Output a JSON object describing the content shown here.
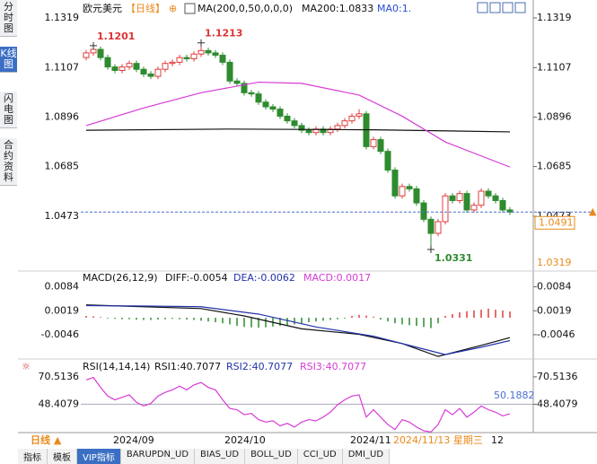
{
  "sidebar": [
    "分时图",
    "K线图",
    "闪电图",
    "合约资料"
  ],
  "chart_data": [
    {
      "type": "candlestick",
      "title": "欧元美元",
      "period": "【日线】",
      "indicator_label": "MA(200,0,50,0,0,0)",
      "indicator_values": [
        "MA200:1.0833",
        "MA0:1."
      ],
      "ylim": [
        1.0247,
        1.1342
      ],
      "yticks": [
        1.1319,
        1.1107,
        1.0896,
        1.0685,
        1.0473
      ],
      "up_color": "#e03c3c",
      "down_color": "#2e8b2e",
      "open": [
        1.115,
        1.117,
        1.1185,
        1.115,
        1.111,
        1.1095,
        1.111,
        1.1125,
        1.11,
        1.108,
        1.107,
        1.11,
        1.1125,
        1.113,
        1.115,
        1.1145,
        1.1165,
        1.118,
        1.117,
        1.116,
        1.113,
        1.105,
        1.104,
        1.1,
        1.0995,
        1.096,
        1.094,
        1.093,
        1.09,
        1.088,
        1.086,
        1.084,
        1.083,
        1.0845,
        1.083,
        1.0845,
        1.086,
        1.088,
        1.09,
        1.091,
        1.077,
        1.08,
        1.075,
        1.067,
        1.056,
        1.06,
        1.059,
        1.053,
        1.046,
        1.04,
        1.045,
        1.056,
        1.054,
        1.057,
        1.05,
        1.052,
        1.058,
        1.056,
        1.054,
        1.05
      ],
      "high": [
        1.1182,
        1.1201,
        1.1197,
        1.1162,
        1.1122,
        1.1122,
        1.1137,
        1.1137,
        1.1112,
        1.1092,
        1.1112,
        1.1137,
        1.1142,
        1.1162,
        1.1162,
        1.1177,
        1.1213,
        1.1192,
        1.1182,
        1.1172,
        1.1142,
        1.1062,
        1.1052,
        1.1012,
        1.1007,
        1.0972,
        1.0952,
        1.0942,
        1.0912,
        1.0892,
        1.0872,
        1.0852,
        1.0857,
        1.0857,
        1.0857,
        1.0872,
        1.0892,
        1.0912,
        1.093,
        1.0922,
        1.0812,
        1.0812,
        1.0762,
        1.0682,
        1.0612,
        1.0612,
        1.0602,
        1.0542,
        1.0472,
        1.0462,
        1.0572,
        1.0572,
        1.0582,
        1.0582,
        1.0532,
        1.0592,
        1.0592,
        1.0572,
        1.0552,
        1.0512
      ],
      "low": [
        1.1138,
        1.1158,
        1.1138,
        1.1098,
        1.1083,
        1.1083,
        1.1098,
        1.1088,
        1.1068,
        1.1058,
        1.1058,
        1.1088,
        1.1113,
        1.1118,
        1.1133,
        1.1133,
        1.1153,
        1.1158,
        1.1148,
        1.1118,
        1.1038,
        1.1028,
        1.0988,
        1.0983,
        1.0948,
        1.0928,
        1.0918,
        1.0888,
        1.0868,
        1.0848,
        1.0828,
        1.0818,
        1.0818,
        1.0818,
        1.0818,
        1.0833,
        1.0848,
        1.0868,
        1.0888,
        1.0758,
        1.0758,
        1.0738,
        1.0658,
        1.0548,
        1.0548,
        1.0578,
        1.0518,
        1.0448,
        1.0331,
        1.0388,
        1.0438,
        1.0528,
        1.0528,
        1.0488,
        1.0488,
        1.0508,
        1.0548,
        1.0528,
        1.0488,
        1.0479
      ],
      "close": [
        1.117,
        1.1185,
        1.115,
        1.111,
        1.1095,
        1.111,
        1.1125,
        1.11,
        1.108,
        1.107,
        1.11,
        1.1125,
        1.113,
        1.115,
        1.1145,
        1.1165,
        1.118,
        1.117,
        1.116,
        1.113,
        1.105,
        1.104,
        1.1,
        1.0995,
        1.096,
        1.094,
        1.093,
        1.09,
        1.088,
        1.086,
        1.084,
        1.083,
        1.0845,
        1.083,
        1.0845,
        1.086,
        1.088,
        1.09,
        1.091,
        1.077,
        1.08,
        1.075,
        1.067,
        1.056,
        1.06,
        1.059,
        1.053,
        1.046,
        1.04,
        1.045,
        1.056,
        1.054,
        1.057,
        1.05,
        1.052,
        1.058,
        1.056,
        1.054,
        1.05,
        1.0491
      ],
      "lines": [
        {
          "color": "#111111",
          "x": [
            0,
            20,
            40,
            59
          ],
          "values": [
            1.084,
            1.0845,
            1.0842,
            1.0833
          ]
        },
        {
          "color": "#d63bd6",
          "x": [
            0,
            8,
            16,
            24,
            30,
            38,
            44,
            50,
            59
          ],
          "values": [
            1.086,
            1.0935,
            1.1,
            1.1045,
            1.104,
            1.099,
            1.09,
            1.079,
            1.0683
          ]
        }
      ],
      "annotations": [
        "1.1201",
        "1.1213",
        "1.0331"
      ],
      "last_price": 1.0491,
      "low_label": "1.0319"
    },
    {
      "type": "macd",
      "title": "MACD(26,12,9)",
      "legend": [
        "DIFF:-0.0054",
        "DEA:-0.0062",
        "MACD:0.0017"
      ],
      "ylim": [
        -0.0112,
        0.0127
      ],
      "yticks": [
        0.0084,
        0.0019,
        -0.0046
      ],
      "up_color": "#e03c3c",
      "down_color": "#2e8b2e",
      "histogram": [
        0.0005,
        0.0004,
        0.0002,
        -0.0002,
        -0.0003,
        -0.0004,
        -0.0004,
        -0.0005,
        -0.0006,
        -0.0006,
        -0.0005,
        -0.0004,
        -0.0003,
        -0.0004,
        -0.0005,
        -0.0006,
        -0.0008,
        -0.001,
        -0.0012,
        -0.0015,
        -0.0018,
        -0.0022,
        -0.0025,
        -0.0026,
        -0.0027,
        -0.0026,
        -0.0024,
        -0.0022,
        -0.002,
        -0.0018,
        -0.0015,
        -0.0012,
        -0.001,
        -0.0008,
        -0.0006,
        -0.0004,
        -0.0002,
        0.0005,
        0.0008,
        0.0006,
        0.0003,
        -0.0005,
        -0.001,
        -0.0015,
        -0.0018,
        -0.002,
        -0.0022,
        -0.0025,
        -0.0028,
        -0.0015,
        0.0005,
        0.001,
        0.0015,
        0.0018,
        0.002,
        0.0022,
        0.0025,
        0.0022,
        0.002,
        0.0017
      ],
      "series": [
        {
          "color": "#111111",
          "x": [
            0,
            8,
            16,
            22,
            30,
            38,
            44,
            49,
            55,
            59
          ],
          "values": [
            0.0035,
            0.003,
            0.0025,
            0.0005,
            -0.003,
            -0.0045,
            -0.007,
            -0.0105,
            -0.0075,
            -0.0054
          ]
        },
        {
          "color": "#2233aa",
          "x": [
            0,
            8,
            16,
            24,
            32,
            40,
            46,
            50,
            55,
            59
          ],
          "values": [
            0.0033,
            0.0032,
            0.003,
            0.001,
            -0.0025,
            -0.005,
            -0.008,
            -0.01,
            -0.008,
            -0.0062
          ]
        }
      ]
    },
    {
      "type": "line",
      "title": "RSI(14,14,14)",
      "legend": [
        "RSI1:40.7077",
        "RSI2:40.7077",
        "RSI3:40.7077"
      ],
      "ylim": [
        25.54,
        83.47
      ],
      "yticks": [
        70.5136,
        48.4079
      ],
      "annotation": "50.1882",
      "series": [
        {
          "color": "#d63bd6",
          "values": [
            68,
            70,
            62,
            55,
            52,
            54,
            56,
            50,
            47,
            49,
            55,
            58,
            60,
            63,
            60,
            64,
            66,
            62,
            60,
            52,
            45,
            44,
            40,
            41,
            36,
            34,
            35,
            31,
            33,
            30,
            34,
            36,
            35,
            38,
            42,
            48,
            52,
            55,
            56,
            38,
            44,
            38,
            32,
            28,
            36,
            34,
            30,
            27,
            26,
            32,
            44,
            40,
            45,
            38,
            42,
            47,
            44,
            42,
            39,
            40.7077
          ]
        }
      ]
    }
  ],
  "x_axis": {
    "labels": [
      "2024/09",
      "2024/10",
      "2024/11"
    ],
    "period": "日线 ▲",
    "cursor": "2024/11/13 星期三",
    "cursor_extra": "12"
  },
  "tabs": [
    "指标",
    "模板",
    "VIP指标",
    "BARUPDN_UD",
    "BIAS_UD",
    "BOLL_UD",
    "CCI_UD",
    "DMI_UD"
  ]
}
